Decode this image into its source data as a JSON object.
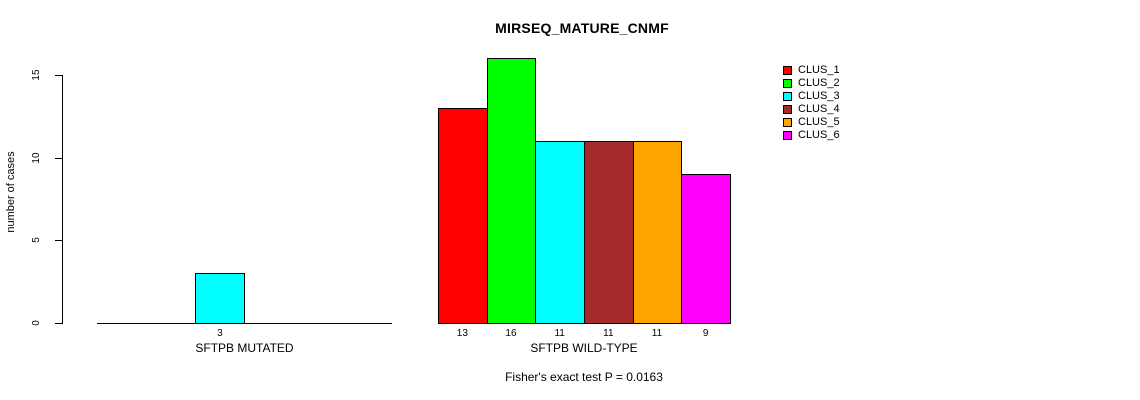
{
  "title": "MIRSEQ_MATURE_CNMF",
  "chart_data": {
    "type": "bar",
    "title": "MIRSEQ_MATURE_CNMF",
    "ylabel": "number of cases",
    "xlabel": "",
    "yticks": [
      0,
      5,
      10,
      15
    ],
    "ylim": [
      0,
      16.8
    ],
    "grid": false,
    "legend_position": "top-right",
    "categories": [
      "SFTPB MUTATED",
      "SFTPB WILD-TYPE"
    ],
    "series": [
      {
        "name": "CLUS_1",
        "color": "#FF0000",
        "values": [
          0,
          13
        ]
      },
      {
        "name": "CLUS_2",
        "color": "#00FF00",
        "values": [
          0,
          16
        ]
      },
      {
        "name": "CLUS_3",
        "color": "#00FFFF",
        "values": [
          3,
          11
        ]
      },
      {
        "name": "CLUS_4",
        "color": "#A52A2A",
        "values": [
          0,
          11
        ]
      },
      {
        "name": "CLUS_5",
        "color": "#FFA500",
        "values": [
          0,
          11
        ]
      },
      {
        "name": "CLUS_6",
        "color": "#FF00FF",
        "values": [
          0,
          9
        ]
      }
    ],
    "bar_value_labels": {
      "SFTPB MUTATED": [
        "",
        "",
        "3",
        "",
        "",
        ""
      ],
      "SFTPB WILD-TYPE": [
        "13",
        "16",
        "11",
        "11",
        "11",
        "9"
      ]
    },
    "annotation": "Fisher's exact test P = 0.0163",
    "axis_color": "#000000",
    "background_color": "#FFFFFF"
  }
}
